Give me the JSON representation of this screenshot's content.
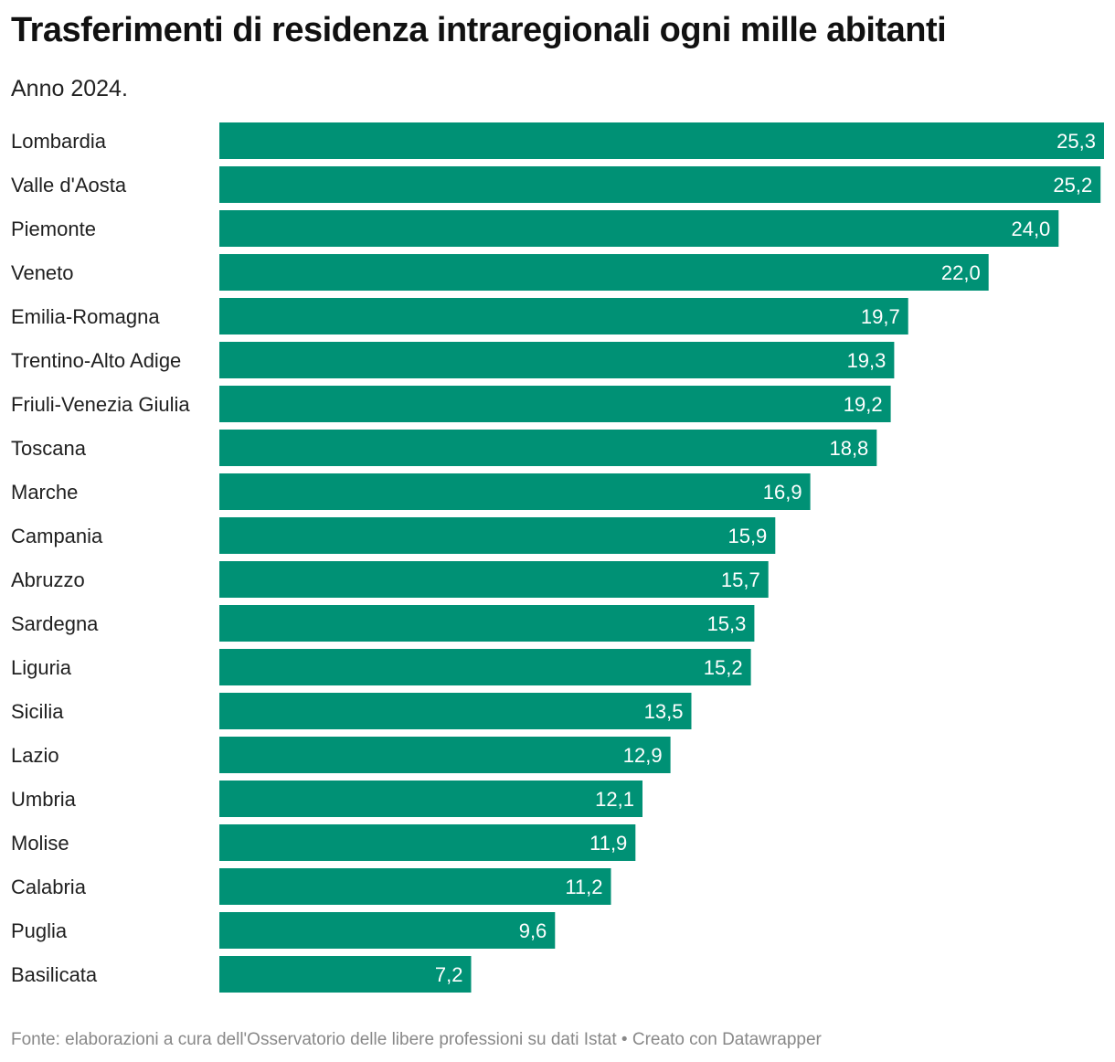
{
  "header": {
    "title": "Trasferimenti di residenza intraregionali ogni mille abitanti",
    "subtitle": "Anno 2024."
  },
  "footer": {
    "source": "Fonte: elaborazioni a cura dell'Osservatorio delle libere professioni su dati Istat • Creato con Datawrapper"
  },
  "colors": {
    "bar": "#009175"
  },
  "chart_data": {
    "type": "bar",
    "orientation": "horizontal",
    "title": "Trasferimenti di residenza intraregionali ogni mille abitanti",
    "subtitle": "Anno 2024.",
    "categories": [
      "Lombardia",
      "Valle d'Aosta",
      "Piemonte",
      "Veneto",
      "Emilia-Romagna",
      "Trentino-Alto Adige",
      "Friuli-Venezia Giulia",
      "Toscana",
      "Marche",
      "Campania",
      "Abruzzo",
      "Sardegna",
      "Liguria",
      "Sicilia",
      "Lazio",
      "Umbria",
      "Molise",
      "Calabria",
      "Puglia",
      "Basilicata"
    ],
    "values": [
      25.3,
      25.2,
      24.0,
      22.0,
      19.7,
      19.3,
      19.2,
      18.8,
      16.9,
      15.9,
      15.7,
      15.3,
      15.2,
      13.5,
      12.9,
      12.1,
      11.9,
      11.2,
      9.6,
      7.2
    ],
    "value_labels": [
      "25,3",
      "25,2",
      "24,0",
      "22,0",
      "19,7",
      "19,3",
      "19,2",
      "18,8",
      "16,9",
      "15,9",
      "15,7",
      "15,3",
      "15,2",
      "13,5",
      "12,9",
      "12,1",
      "11,9",
      "11,2",
      "9,6",
      "7,2"
    ],
    "xlim": [
      0,
      25.3
    ],
    "grid": false,
    "legend": "none"
  }
}
